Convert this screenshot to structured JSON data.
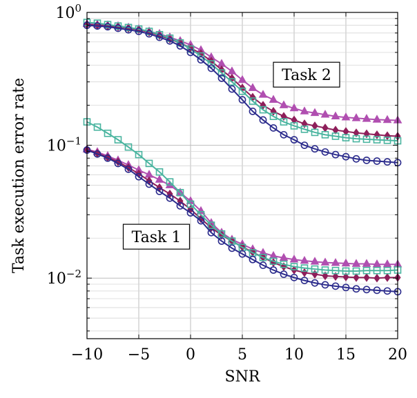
{
  "chart_data": {
    "type": "line",
    "xlabel": "SNR",
    "ylabel": "Task execution error rate",
    "xlim": [
      -10,
      20
    ],
    "ylim": [
      0.0035,
      1.0
    ],
    "yscale": "log",
    "grid": true,
    "x_ticks": [
      {
        "value": -10,
        "label": "−10"
      },
      {
        "value": -5,
        "label": "−5"
      },
      {
        "value": 0,
        "label": "0"
      },
      {
        "value": 5,
        "label": "5"
      },
      {
        "value": 10,
        "label": "10"
      },
      {
        "value": 15,
        "label": "15"
      },
      {
        "value": 20,
        "label": "20"
      }
    ],
    "y_ticks": [
      {
        "value": 1.0,
        "base": "10",
        "exp": "0"
      },
      {
        "value": 0.1,
        "base": "10",
        "exp": "−1"
      },
      {
        "value": 0.01,
        "base": "10",
        "exp": "−2"
      }
    ],
    "annotations": [
      {
        "text": "Task 2",
        "x": 11.2,
        "y": 0.34
      },
      {
        "text": "Task 1",
        "x": -3.3,
        "y": 0.0205
      }
    ],
    "x": [
      -10,
      -9,
      -8,
      -7,
      -6,
      -5,
      -4,
      -3,
      -2,
      -1,
      0,
      1,
      2,
      3,
      4,
      5,
      6,
      7,
      8,
      9,
      10,
      11,
      12,
      13,
      14,
      15,
      16,
      17,
      18,
      19,
      20
    ],
    "series": [
      {
        "group": "Task 2",
        "marker": "triangle",
        "color": "#b04fb0",
        "values": [
          0.82,
          0.81,
          0.8,
          0.79,
          0.77,
          0.75,
          0.72,
          0.69,
          0.65,
          0.61,
          0.57,
          0.52,
          0.46,
          0.41,
          0.36,
          0.31,
          0.27,
          0.24,
          0.22,
          0.2,
          0.19,
          0.18,
          0.175,
          0.17,
          0.165,
          0.162,
          0.16,
          0.158,
          0.156,
          0.155,
          0.154
        ]
      },
      {
        "group": "Task 2",
        "marker": "diamond",
        "color": "#8e1f5a",
        "values": [
          0.81,
          0.8,
          0.79,
          0.78,
          0.76,
          0.74,
          0.71,
          0.67,
          0.63,
          0.59,
          0.54,
          0.49,
          0.43,
          0.37,
          0.32,
          0.27,
          0.23,
          0.2,
          0.18,
          0.165,
          0.155,
          0.145,
          0.14,
          0.135,
          0.13,
          0.127,
          0.124,
          0.122,
          0.12,
          0.118,
          0.117
        ]
      },
      {
        "group": "Task 2",
        "marker": "square",
        "color": "#49b49f",
        "values": [
          0.84,
          0.83,
          0.81,
          0.79,
          0.77,
          0.75,
          0.72,
          0.68,
          0.64,
          0.59,
          0.53,
          0.47,
          0.41,
          0.35,
          0.3,
          0.255,
          0.215,
          0.185,
          0.165,
          0.15,
          0.14,
          0.132,
          0.125,
          0.12,
          0.117,
          0.114,
          0.112,
          0.111,
          0.11,
          0.109,
          0.108
        ]
      },
      {
        "group": "Task 2",
        "marker": "circle",
        "color": "#2b2b8c",
        "values": [
          0.8,
          0.79,
          0.78,
          0.76,
          0.74,
          0.72,
          0.69,
          0.65,
          0.61,
          0.56,
          0.5,
          0.44,
          0.38,
          0.32,
          0.265,
          0.22,
          0.18,
          0.155,
          0.135,
          0.12,
          0.11,
          0.1,
          0.094,
          0.089,
          0.085,
          0.082,
          0.079,
          0.077,
          0.076,
          0.075,
          0.074
        ]
      },
      {
        "group": "Task 1",
        "marker": "triangle",
        "color": "#b04fb0",
        "values": [
          0.093,
          0.089,
          0.083,
          0.077,
          0.071,
          0.065,
          0.06,
          0.055,
          0.05,
          0.044,
          0.038,
          0.032,
          0.026,
          0.022,
          0.0195,
          0.018,
          0.0165,
          0.0155,
          0.0147,
          0.0142,
          0.0138,
          0.0135,
          0.0133,
          0.0131,
          0.013,
          0.0129,
          0.0128,
          0.0128,
          0.0127,
          0.0127,
          0.0127
        ]
      },
      {
        "group": "Task 1",
        "marker": "diamond",
        "color": "#8e1f5a",
        "values": [
          0.093,
          0.087,
          0.081,
          0.075,
          0.068,
          0.061,
          0.054,
          0.048,
          0.043,
          0.038,
          0.033,
          0.028,
          0.024,
          0.021,
          0.019,
          0.0172,
          0.0157,
          0.0143,
          0.0131,
          0.0122,
          0.0115,
          0.011,
          0.0107,
          0.0104,
          0.0103,
          0.0102,
          0.0101,
          0.0101,
          0.01,
          0.0101,
          0.0101
        ]
      },
      {
        "group": "Task 1",
        "marker": "square",
        "color": "#49b49f",
        "values": [
          0.15,
          0.137,
          0.123,
          0.11,
          0.097,
          0.085,
          0.073,
          0.063,
          0.053,
          0.044,
          0.036,
          0.03,
          0.025,
          0.0215,
          0.019,
          0.017,
          0.0155,
          0.0143,
          0.0134,
          0.0127,
          0.0122,
          0.0119,
          0.0117,
          0.0115,
          0.0114,
          0.0113,
          0.0113,
          0.0114,
          0.0114,
          0.0114,
          0.0115
        ]
      },
      {
        "group": "Task 1",
        "marker": "circle",
        "color": "#2b2b8c",
        "values": [
          0.092,
          0.086,
          0.08,
          0.073,
          0.066,
          0.058,
          0.051,
          0.045,
          0.04,
          0.035,
          0.031,
          0.027,
          0.022,
          0.019,
          0.0168,
          0.0152,
          0.0138,
          0.0125,
          0.0115,
          0.0107,
          0.0101,
          0.0096,
          0.0092,
          0.0089,
          0.0087,
          0.0085,
          0.0083,
          0.0082,
          0.0081,
          0.008,
          0.0079
        ]
      }
    ]
  }
}
